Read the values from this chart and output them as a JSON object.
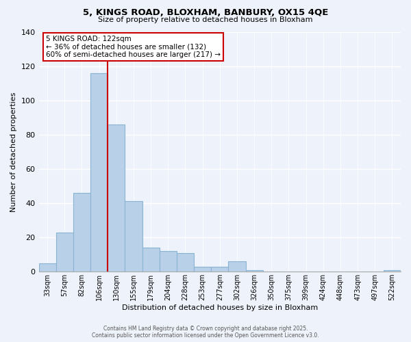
{
  "title": "5, KINGS ROAD, BLOXHAM, BANBURY, OX15 4QE",
  "subtitle": "Size of property relative to detached houses in Bloxham",
  "xlabel": "Distribution of detached houses by size in Bloxham",
  "ylabel": "Number of detached properties",
  "bin_labels": [
    "33sqm",
    "57sqm",
    "82sqm",
    "106sqm",
    "130sqm",
    "155sqm",
    "179sqm",
    "204sqm",
    "228sqm",
    "253sqm",
    "277sqm",
    "302sqm",
    "326sqm",
    "350sqm",
    "375sqm",
    "399sqm",
    "424sqm",
    "448sqm",
    "473sqm",
    "497sqm",
    "522sqm"
  ],
  "bar_values": [
    5,
    23,
    46,
    116,
    86,
    41,
    14,
    12,
    11,
    3,
    3,
    6,
    1,
    0,
    0,
    0,
    0,
    0,
    0,
    0,
    1
  ],
  "bar_color": "#b8d0e8",
  "bar_edge_color": "#8ab4d4",
  "vline_color": "#cc0000",
  "annotation_title": "5 KINGS ROAD: 122sqm",
  "annotation_line1": "← 36% of detached houses are smaller (132)",
  "annotation_line2": "60% of semi-detached houses are larger (217) →",
  "annotation_box_color": "#ffffff",
  "annotation_box_edge": "#cc0000",
  "ylim": [
    0,
    140
  ],
  "yticks": [
    0,
    20,
    40,
    60,
    80,
    100,
    120,
    140
  ],
  "footer1": "Contains HM Land Registry data © Crown copyright and database right 2025.",
  "footer2": "Contains public sector information licensed under the Open Government Licence v3.0.",
  "background_color": "#eef2fa",
  "grid_color": "#ffffff"
}
